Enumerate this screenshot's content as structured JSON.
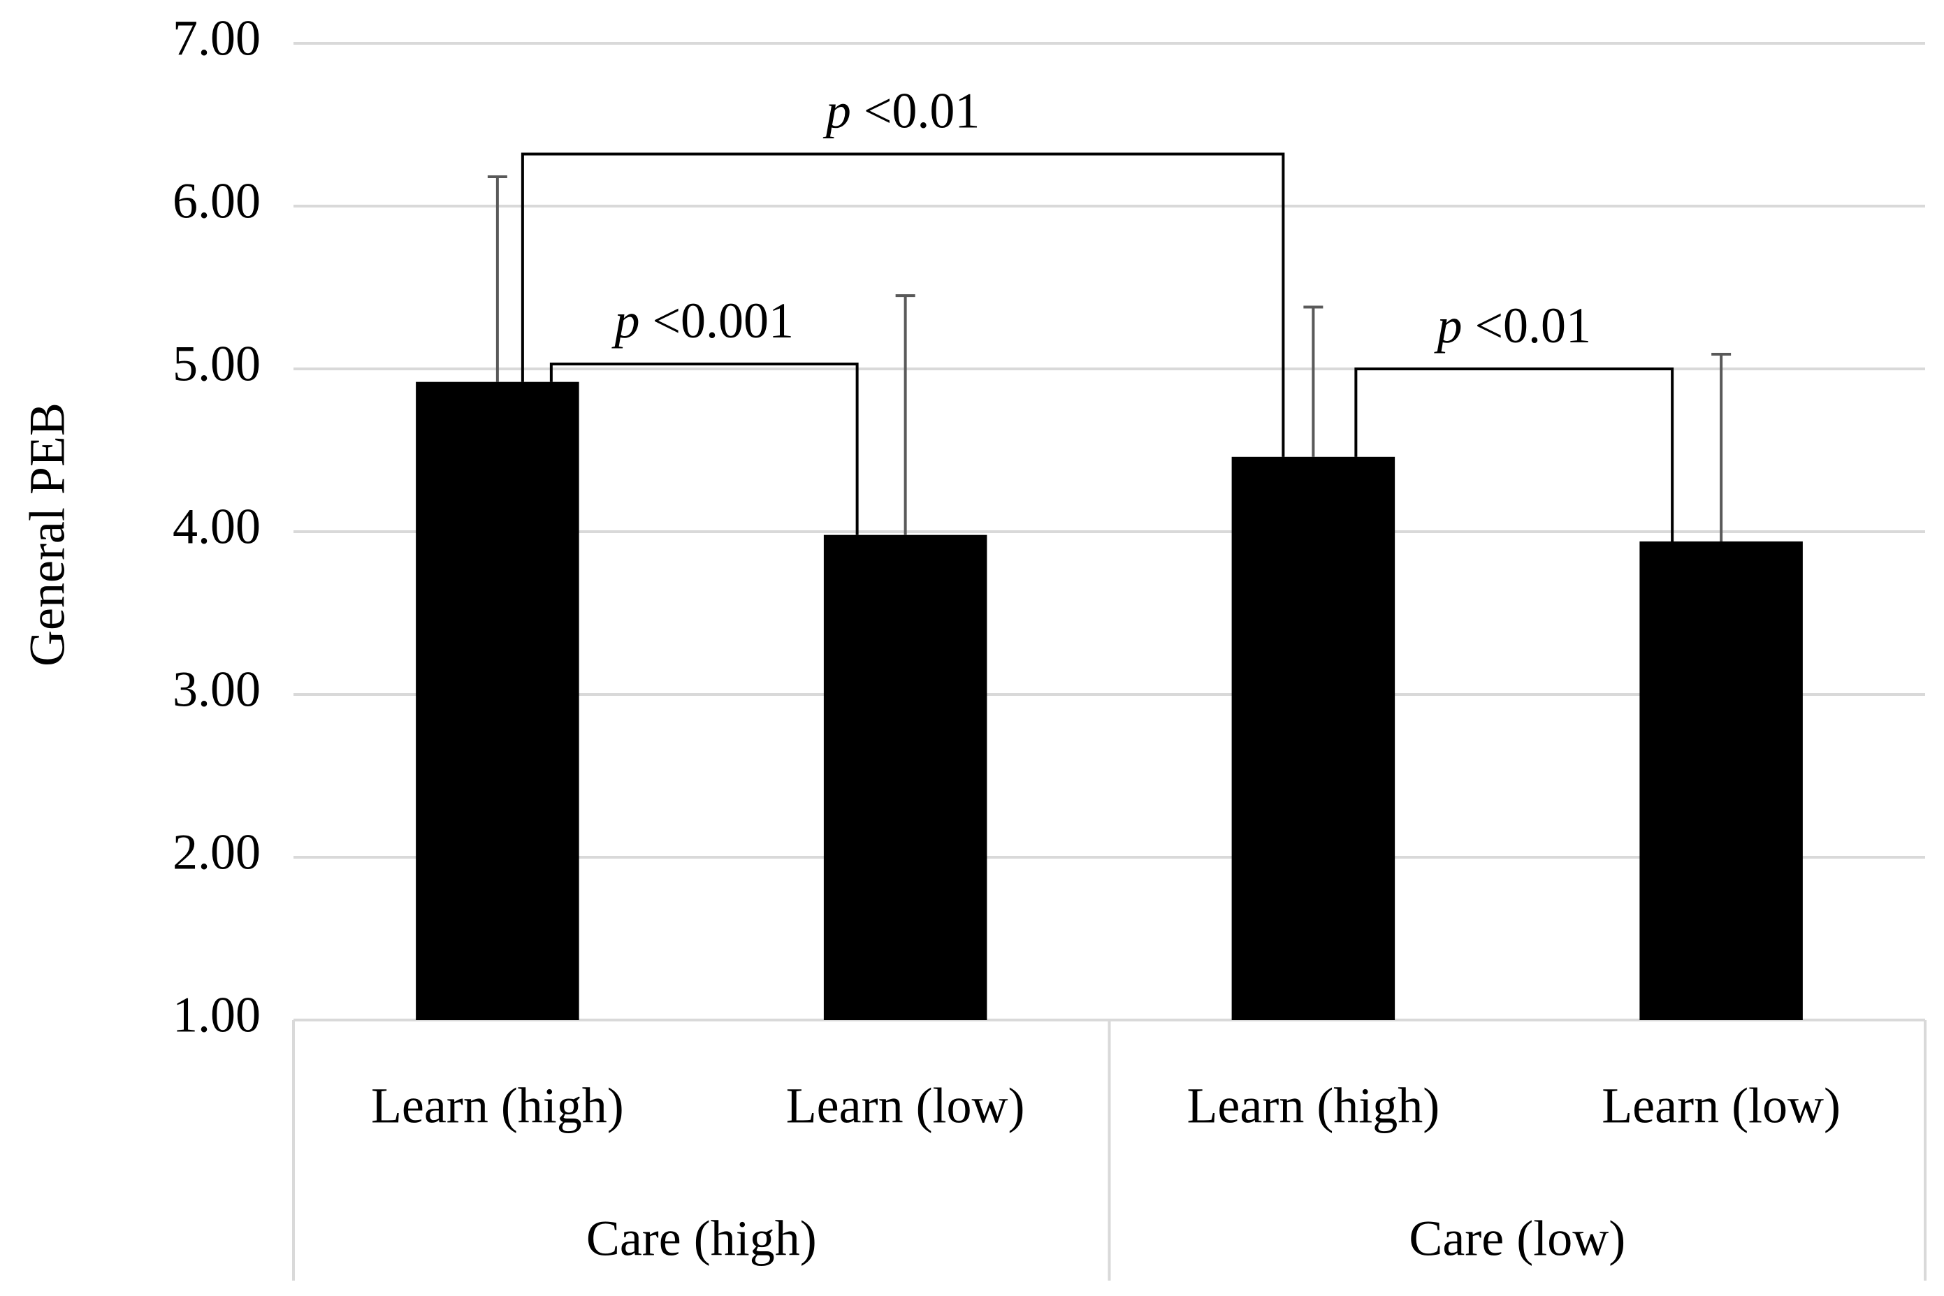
{
  "chart_data": {
    "type": "bar",
    "y_label": "General PEB",
    "categories": [
      "Learn (high)",
      "Learn (low)",
      "Learn (high)",
      "Learn (low)"
    ],
    "groups": [
      "Care (high)",
      "Care (low)"
    ],
    "values": [
      4.92,
      3.98,
      4.46,
      3.94
    ],
    "errors": [
      1.26,
      1.47,
      0.92,
      1.15
    ],
    "color": "#000000",
    "error_color": "#595959",
    "ylim": [
      1,
      7
    ],
    "yticks": [
      {
        "value": 1,
        "label": "1.00"
      },
      {
        "value": 2,
        "label": "2.00"
      },
      {
        "value": 3,
        "label": "3.00"
      },
      {
        "value": 4,
        "label": "4.00"
      },
      {
        "value": 5,
        "label": "5.00"
      },
      {
        "value": 6,
        "label": "6.00"
      },
      {
        "value": 7,
        "label": "7.00"
      }
    ],
    "grid": true,
    "annotations": [
      {
        "italic": "p",
        "text": "<0.01"
      },
      {
        "italic": "p",
        "text": "<0.001"
      },
      {
        "italic": "p",
        "text": "<0.01"
      }
    ]
  }
}
